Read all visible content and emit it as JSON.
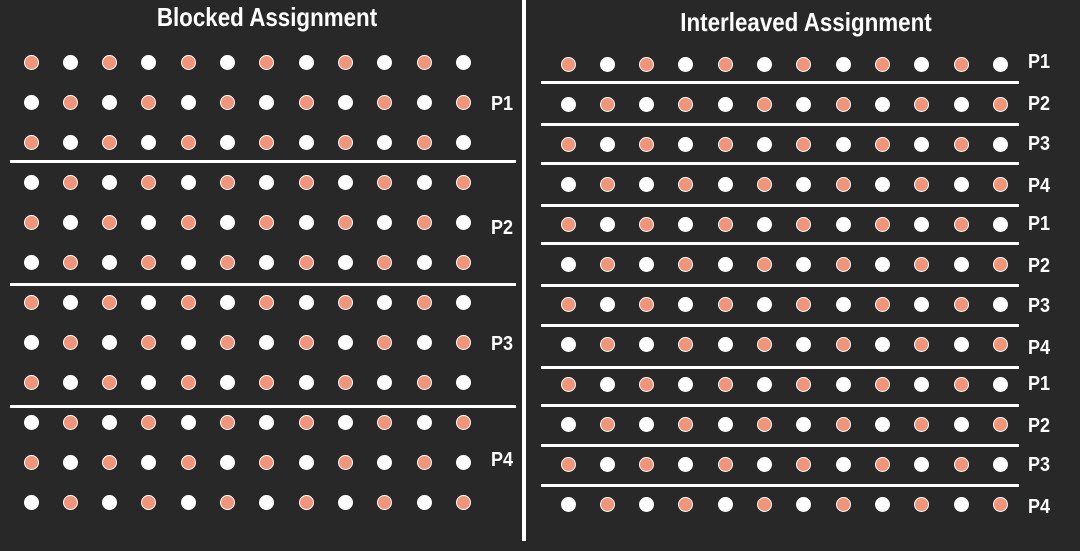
{
  "blocked": {
    "title": "Blocked Assignment",
    "labels": [
      "P1",
      "P2",
      "P3",
      "P4"
    ],
    "rows_per_block": 3,
    "columns": 12
  },
  "interleaved": {
    "title": "Interleaved Assignment",
    "row_labels": [
      "P1",
      "P2",
      "P3",
      "P4",
      "P1",
      "P2",
      "P3",
      "P4",
      "P1",
      "P2",
      "P3",
      "P4"
    ],
    "columns": 12
  },
  "colors": {
    "background": "#282828",
    "dot_white": "#ffffff",
    "dot_highlight": "#f0947a",
    "text": "#ffffff"
  }
}
